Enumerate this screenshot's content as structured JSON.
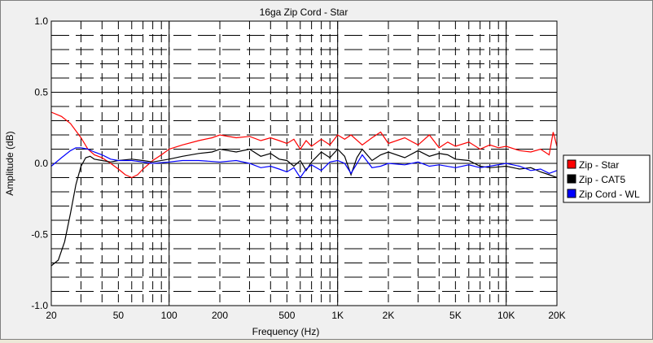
{
  "chart_data": {
    "type": "line",
    "title": "16ga Zip Cord - Star",
    "xlabel": "Frequency (Hz)",
    "ylabel": "Amplitude (dB)",
    "x_scale": "log",
    "xlim": [
      20,
      20000
    ],
    "ylim": [
      -1.0,
      1.0
    ],
    "grid": true,
    "legend_position": "right",
    "x_ticks": [
      {
        "value": 20,
        "label": "20"
      },
      {
        "value": 50,
        "label": "50"
      },
      {
        "value": 100,
        "label": "100"
      },
      {
        "value": 200,
        "label": "200"
      },
      {
        "value": 500,
        "label": "500"
      },
      {
        "value": 1000,
        "label": "1K"
      },
      {
        "value": 2000,
        "label": "2K"
      },
      {
        "value": 5000,
        "label": "5K"
      },
      {
        "value": 10000,
        "label": "10K"
      },
      {
        "value": 20000,
        "label": "20K"
      }
    ],
    "y_ticks": [
      {
        "value": 1.0,
        "label": "1.0"
      },
      {
        "value": 0.5,
        "label": "0.5"
      },
      {
        "value": 0.0,
        "label": "0.0"
      },
      {
        "value": -0.5,
        "label": "-0.5"
      },
      {
        "value": -1.0,
        "label": "-1.0"
      }
    ],
    "series": [
      {
        "name": "Zip - Star",
        "color": "#ff0000",
        "x": [
          20,
          23,
          26,
          30,
          33,
          36,
          40,
          45,
          50,
          55,
          60,
          65,
          70,
          80,
          90,
          100,
          120,
          150,
          180,
          200,
          250,
          300,
          350,
          400,
          450,
          500,
          550,
          600,
          650,
          700,
          800,
          900,
          1000,
          1100,
          1200,
          1400,
          1600,
          1800,
          2000,
          2500,
          3000,
          3500,
          4000,
          4500,
          5000,
          6000,
          7000,
          8000,
          9000,
          10000,
          12000,
          14000,
          16000,
          18000,
          19000,
          20000
        ],
        "y": [
          0.36,
          0.33,
          0.28,
          0.18,
          0.1,
          0.06,
          0.04,
          0.0,
          -0.04,
          -0.08,
          -0.1,
          -0.08,
          -0.04,
          0.02,
          0.06,
          0.1,
          0.13,
          0.16,
          0.18,
          0.2,
          0.18,
          0.19,
          0.16,
          0.18,
          0.16,
          0.14,
          0.17,
          0.1,
          0.16,
          0.12,
          0.17,
          0.13,
          0.2,
          0.17,
          0.2,
          0.13,
          0.18,
          0.22,
          0.14,
          0.18,
          0.13,
          0.2,
          0.11,
          0.15,
          0.12,
          0.15,
          0.1,
          0.13,
          0.11,
          0.12,
          0.09,
          0.08,
          0.1,
          0.06,
          0.22,
          0.12
        ]
      },
      {
        "name": "Zip - CAT5",
        "color": "#000000",
        "x": [
          20,
          22,
          24,
          26,
          28,
          30,
          32,
          34,
          36,
          40,
          45,
          50,
          60,
          70,
          80,
          100,
          120,
          150,
          180,
          200,
          250,
          300,
          350,
          400,
          450,
          500,
          550,
          600,
          650,
          700,
          800,
          900,
          1000,
          1100,
          1200,
          1300,
          1400,
          1600,
          1800,
          2000,
          2500,
          3000,
          3500,
          4000,
          4500,
          5000,
          6000,
          7000,
          8000,
          10000,
          12000,
          14000,
          16000,
          18000,
          20000
        ],
        "y": [
          -0.72,
          -0.68,
          -0.55,
          -0.35,
          -0.15,
          -0.02,
          0.04,
          0.05,
          0.03,
          0.02,
          0.01,
          0.02,
          0.03,
          0.02,
          0.01,
          0.03,
          0.05,
          0.07,
          0.08,
          0.1,
          0.08,
          0.1,
          0.05,
          0.07,
          0.03,
          0.02,
          -0.02,
          0.02,
          -0.05,
          0.01,
          0.08,
          0.04,
          0.1,
          0.05,
          -0.08,
          0.04,
          0.1,
          0.02,
          0.06,
          0.08,
          0.04,
          0.09,
          0.05,
          0.07,
          0.06,
          0.03,
          0.02,
          -0.02,
          -0.03,
          -0.02,
          -0.04,
          -0.03,
          -0.06,
          -0.08,
          -0.1
        ]
      },
      {
        "name": "Zip Cord - WL",
        "color": "#0000ff",
        "x": [
          20,
          23,
          26,
          28,
          30,
          33,
          36,
          40,
          45,
          50,
          60,
          70,
          80,
          100,
          120,
          150,
          200,
          250,
          300,
          350,
          400,
          450,
          500,
          550,
          600,
          650,
          700,
          800,
          900,
          1000,
          1100,
          1200,
          1400,
          1600,
          1800,
          2000,
          2500,
          3000,
          3500,
          4000,
          5000,
          6000,
          7000,
          8000,
          10000,
          12000,
          14000,
          16000,
          18000,
          20000
        ],
        "y": [
          -0.02,
          0.04,
          0.09,
          0.11,
          0.11,
          0.1,
          0.08,
          0.06,
          0.03,
          0.02,
          0.02,
          0.01,
          0.0,
          0.01,
          0.02,
          0.02,
          0.01,
          0.02,
          0.0,
          -0.03,
          -0.02,
          -0.04,
          -0.06,
          -0.03,
          -0.1,
          -0.04,
          -0.01,
          -0.05,
          0.01,
          0.02,
          0.0,
          -0.07,
          0.06,
          -0.03,
          -0.02,
          0.0,
          -0.01,
          0.01,
          -0.02,
          -0.01,
          -0.03,
          -0.01,
          -0.03,
          -0.02,
          0.0,
          -0.02,
          -0.05,
          -0.04,
          -0.07,
          -0.05
        ]
      }
    ]
  }
}
